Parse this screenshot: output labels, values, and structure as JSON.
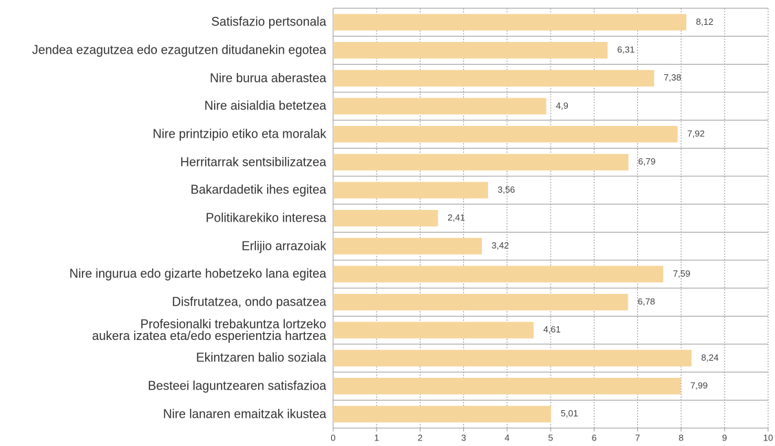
{
  "chart_data": {
    "type": "bar",
    "orientation": "horizontal",
    "categories": [
      "Satisfazio pertsonala",
      "Jendea ezagutzea edo ezagutzen ditudanekin egotea",
      "Nire burua aberastea",
      "Nire aisialdia betetzea",
      "Nire printzipio etiko eta moralak",
      "Herritarrak sentsibilizatzea",
      "Bakardadetik ihes egitea",
      "Politikarekiko interesa",
      "Erlijio arrazoiak",
      "Nire ingurua edo gizarte hobetzeko lana egitea",
      "Disfrutatzea, ondo pasatzea",
      "Profesionalki trebakuntza lortzeko\naukera izatea eta/edo esperientzia hartzea",
      "Ekintzaren balio soziala",
      "Besteei laguntzearen satisfazioa",
      "Nire lanaren emaitzak ikustea"
    ],
    "values": [
      8.12,
      6.31,
      7.38,
      4.9,
      7.92,
      6.79,
      3.56,
      2.41,
      3.42,
      7.59,
      6.78,
      4.61,
      8.24,
      7.99,
      5.01
    ],
    "value_labels": [
      "8,12",
      "6,31",
      "7,38",
      "4,9",
      "7,92",
      "6,79",
      "3,56",
      "2,41",
      "3,42",
      "7,59",
      "6,78",
      "4,61",
      "8,24",
      "7,99",
      "5,01"
    ],
    "color": "#f6d59b",
    "xlim": [
      0,
      10
    ],
    "xticks": [
      0,
      1,
      2,
      3,
      4,
      5,
      6,
      7,
      8,
      9,
      10
    ],
    "grid": true
  }
}
